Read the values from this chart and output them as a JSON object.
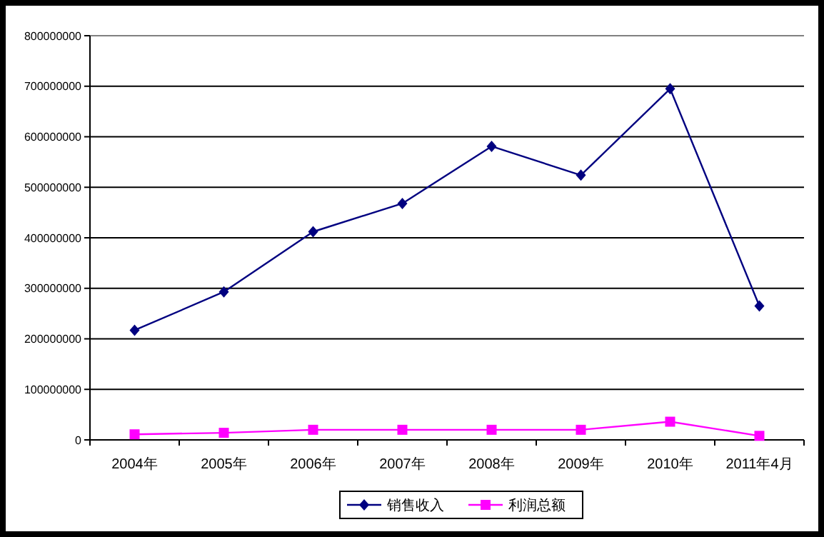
{
  "chart_data": {
    "type": "line",
    "categories": [
      "2004年",
      "2005年",
      "2006年",
      "2007年",
      "2008年",
      "2009年",
      "2010年",
      "2011年4月"
    ],
    "series": [
      {
        "name": "销售收入",
        "color": "#000080",
        "marker": "diamond",
        "values": [
          217000000,
          293000000,
          412000000,
          468000000,
          581000000,
          524000000,
          695000000,
          265000000
        ]
      },
      {
        "name": "利润总额",
        "color": "#ff00ff",
        "marker": "square",
        "values": [
          11000000,
          14000000,
          20000000,
          20000000,
          20000000,
          20000000,
          36000000,
          8000000
        ]
      }
    ],
    "ylim": [
      0,
      800000000
    ],
    "yticks": [
      0,
      100000000,
      200000000,
      300000000,
      400000000,
      500000000,
      600000000,
      700000000,
      800000000
    ],
    "grid": "y",
    "legend": "bottom"
  }
}
